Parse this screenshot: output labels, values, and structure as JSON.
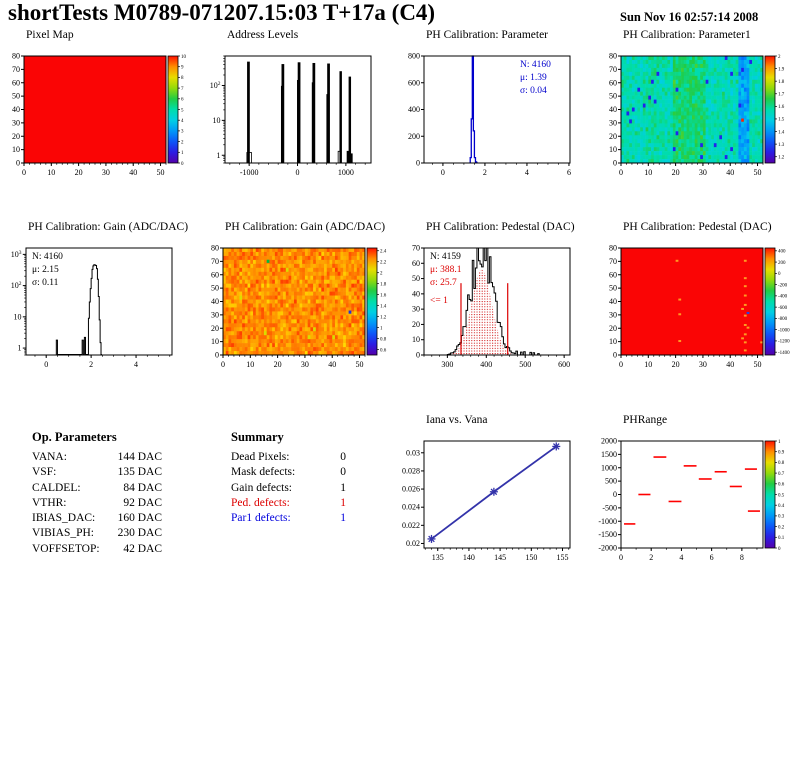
{
  "header": {
    "title": "shortTests M0789-071207.15:03 T+17a (C4)",
    "date": "Sun Nov 16 02:57:14 2008"
  },
  "op_parameters": {
    "title": "Op. Parameters",
    "rows": [
      {
        "label": "VANA:",
        "value": "144 DAC"
      },
      {
        "label": "VSF:",
        "value": "135 DAC"
      },
      {
        "label": "CALDEL:",
        "value": "84 DAC"
      },
      {
        "label": "VTHR:",
        "value": "92 DAC"
      },
      {
        "label": "IBIAS_DAC:",
        "value": "160 DAC"
      },
      {
        "label": "VIBIAS_PH:",
        "value": "230 DAC"
      },
      {
        "label": "VOFFSETOP:",
        "value": "42 DAC"
      }
    ]
  },
  "summary": {
    "title": "Summary",
    "rows": [
      {
        "label": "Dead Pixels:",
        "value": "0",
        "color": "#000000"
      },
      {
        "label": "Mask defects:",
        "value": "0",
        "color": "#000000"
      },
      {
        "label": "Gain defects:",
        "value": "1",
        "color": "#000000"
      },
      {
        "label": "Ped. defects:",
        "value": "1",
        "color": "#dd0000"
      },
      {
        "label": "Par1 defects:",
        "value": "1",
        "color": "#0000dd"
      }
    ]
  },
  "chart_data": [
    {
      "id": "pixel-map",
      "type": "heatmap-uniform",
      "layout": "heat",
      "title": "Pixel Map",
      "xlim": [
        0,
        52
      ],
      "xticks": [
        0,
        10,
        20,
        30,
        40,
        50
      ],
      "xminor": 2,
      "ylim": [
        0,
        80
      ],
      "yticks": [
        0,
        10,
        20,
        30,
        40,
        50,
        60,
        70,
        80
      ],
      "base_color": "#fa0505",
      "colorbar": {
        "min": 0,
        "max": 10,
        "ticks": [
          0,
          1,
          2,
          3,
          4,
          5,
          6,
          7,
          8,
          9,
          10
        ]
      }
    },
    {
      "id": "address-levels",
      "type": "spikes-log",
      "layout": "plain",
      "title": "Address Levels",
      "xlim": [
        -1500,
        1520
      ],
      "xticks": [
        -1000,
        0,
        1000
      ],
      "xminor": 200,
      "ylim": [
        0.6,
        700
      ],
      "ylog": true,
      "spikes": [
        [
          -1015,
          470,
          40
        ],
        [
          -1000,
          1.2,
          95
        ],
        [
          -320,
          95,
          28
        ],
        [
          -303,
          400,
          40
        ],
        [
          12,
          140,
          28
        ],
        [
          32,
          450,
          40
        ],
        [
          318,
          120,
          28
        ],
        [
          338,
          430,
          40
        ],
        [
          620,
          55,
          28
        ],
        [
          642,
          415,
          40
        ],
        [
          868,
          1.3,
          55
        ],
        [
          893,
          250,
          34
        ],
        [
          1048,
          1.3,
          45
        ],
        [
          1082,
          175,
          34
        ],
        [
          1112,
          1.1,
          40
        ]
      ]
    },
    {
      "id": "ph-parameter",
      "type": "step-hist",
      "layout": "plain",
      "title": "PH Calibration: Parameter",
      "color": "#0000cc",
      "lw": 1.3,
      "xlim": [
        -0.9,
        6.05
      ],
      "xticks": [
        0,
        2,
        4,
        6
      ],
      "xminor": 0.5,
      "ylim": [
        0,
        800
      ],
      "yticks": [
        0,
        200,
        400,
        600,
        800
      ],
      "bins": [
        [
          1.3,
          40
        ],
        [
          1.35,
          330
        ],
        [
          1.4,
          800
        ],
        [
          1.45,
          240
        ],
        [
          1.5,
          40
        ],
        [
          1.55,
          8
        ],
        [
          1.6,
          0
        ]
      ],
      "bin_w": 0.05,
      "stats_pos": "tr",
      "stats": [
        {
          "text": "N: 4160",
          "color": "#0000cc"
        },
        {
          "text": "μ: 1.39",
          "color": "#0000cc"
        },
        {
          "text": "σ: 0.04",
          "color": "#0000cc"
        }
      ]
    },
    {
      "id": "ph-parameter1",
      "type": "heatmap-noise",
      "layout": "heat",
      "title": "PH Calibration: Parameter1",
      "xlim": [
        0,
        52
      ],
      "xticks": [
        0,
        10,
        20,
        30,
        40,
        50
      ],
      "xminor": 2,
      "ylim": [
        0,
        80
      ],
      "yticks": [
        0,
        10,
        20,
        30,
        40,
        50,
        60,
        70,
        80
      ],
      "seed": 1234,
      "v_base": 0.48,
      "v_noise": 0.1,
      "col_bias": [
        {
          "c0": 19,
          "c1": 30,
          "v": 0.07
        },
        {
          "c0": 43,
          "c1": 46,
          "v": -0.16
        },
        {
          "c0": 8,
          "c1": 13,
          "v": 0.02
        }
      ],
      "outlier_p": 0.012,
      "outlier_v": 0.12,
      "dots": [
        {
          "x": 44,
          "y": 31,
          "c": "#ff2200"
        }
      ],
      "colorbar": {
        "min": 1.15,
        "max": 2,
        "ticks": [
          1.2,
          1.3,
          1.4,
          1.5,
          1.6,
          1.7,
          1.8,
          1.9,
          2
        ]
      }
    },
    {
      "id": "gain-hist",
      "type": "step-hist",
      "layout": "plain",
      "title": "PH Calibration: Gain (ADC/DAC)",
      "color": "#000000",
      "lw": 1,
      "xlim": [
        -0.9,
        5.6
      ],
      "xticks": [
        0,
        2,
        4
      ],
      "xminor": 0.5,
      "ylim": [
        0.6,
        1600
      ],
      "ylog": true,
      "bins": [
        [
          0.45,
          1.8
        ],
        [
          0.5,
          0
        ],
        [
          1.6,
          1.8
        ],
        [
          1.65,
          0
        ],
        [
          1.7,
          2.2
        ],
        [
          1.75,
          0
        ],
        [
          1.88,
          9
        ],
        [
          1.92,
          30
        ],
        [
          1.96,
          80
        ],
        [
          2.0,
          170
        ],
        [
          2.04,
          330
        ],
        [
          2.08,
          430
        ],
        [
          2.12,
          465
        ],
        [
          2.16,
          455
        ],
        [
          2.2,
          440
        ],
        [
          2.24,
          350
        ],
        [
          2.28,
          160
        ],
        [
          2.32,
          45
        ],
        [
          2.36,
          8
        ],
        [
          2.4,
          1.5
        ],
        [
          2.44,
          0
        ]
      ],
      "bin_w": 0.04,
      "stats_pos": "tl",
      "stats": [
        {
          "text": "N: 4160",
          "color": "#000000"
        },
        {
          "text": "μ: 2.15",
          "color": "#000000"
        },
        {
          "text": "σ: 0.11",
          "color": "#000000"
        }
      ]
    },
    {
      "id": "gain-map",
      "type": "heatmap-noise",
      "layout": "heat",
      "title": "PH Calibration: Gain (ADC/DAC)",
      "xlim": [
        0,
        52
      ],
      "xticks": [
        0,
        10,
        20,
        30,
        40,
        50
      ],
      "xminor": 2,
      "ylim": [
        0,
        80
      ],
      "yticks": [
        0,
        10,
        20,
        30,
        40,
        50,
        60,
        70,
        80
      ],
      "seed": 77,
      "v_base": 0.9,
      "v_noise": 0.07,
      "col_bias": [],
      "outlier_p": 0.004,
      "outlier_v": 0.78,
      "dots": [
        {
          "x": 16,
          "y": 69,
          "c": "#00bb44"
        },
        {
          "x": 46,
          "y": 31,
          "c": "#2233dd"
        }
      ],
      "colorbar": {
        "min": 0.5,
        "max": 2.45,
        "ticks": [
          0.6,
          0.8,
          1,
          1.2,
          1.4,
          1.6,
          1.8,
          2,
          2.2,
          2.4
        ]
      }
    },
    {
      "id": "pedestal-hist",
      "type": "pedestal-hist",
      "layout": "plain",
      "title": "PH Calibration: Pedestal (DAC)",
      "xlim": [
        240,
        615
      ],
      "xticks": [
        300,
        400,
        500,
        600
      ],
      "xminor": 20,
      "ylim": [
        0,
        70
      ],
      "yticks": [
        0,
        10,
        20,
        30,
        40,
        50,
        60,
        70
      ],
      "seed": 99,
      "hist": {
        "x0": 256,
        "x1": 600,
        "mu": 390,
        "sigma": 28,
        "peak": 69
      },
      "fill": {
        "x0": 300,
        "x1": 490,
        "mu": 388,
        "sigma": 26,
        "peak": 56
      },
      "vlines": [
        335,
        455
      ],
      "vline_top": 47,
      "stats_pos": "tl",
      "stats": [
        {
          "text": "N: 4159",
          "color": "#000000"
        },
        {
          "text": "μ: 388.1",
          "color": "#dd0000"
        },
        {
          "text": "σ: 25.7",
          "color": "#dd0000"
        },
        {
          "text": "<= 1",
          "color": "#dd0000",
          "dy": 18
        }
      ]
    },
    {
      "id": "pedestal-map",
      "type": "heatmap-uniform",
      "layout": "heat",
      "title": "PH Calibration: Pedestal (DAC)",
      "xlim": [
        0,
        52
      ],
      "xticks": [
        0,
        10,
        20,
        30,
        40,
        50
      ],
      "xminor": 2,
      "ylim": [
        0,
        80
      ],
      "yticks": [
        0,
        10,
        20,
        30,
        40,
        50,
        60,
        70,
        80
      ],
      "base_color": "#fa0505",
      "dot_color": "#ff9922",
      "dots": [
        {
          "x": 21,
          "y": 10
        },
        {
          "x": 21,
          "y": 30
        },
        {
          "x": 21,
          "y": 41
        },
        {
          "x": 20,
          "y": 70
        },
        {
          "x": 45,
          "y": 3
        },
        {
          "x": 45,
          "y": 9
        },
        {
          "x": 45,
          "y": 15
        },
        {
          "x": 45,
          "y": 22
        },
        {
          "x": 45,
          "y": 29
        },
        {
          "x": 45,
          "y": 37
        },
        {
          "x": 45,
          "y": 44
        },
        {
          "x": 45,
          "y": 51
        },
        {
          "x": 45,
          "y": 57
        },
        {
          "x": 44,
          "y": 12
        },
        {
          "x": 44,
          "y": 34
        },
        {
          "x": 46,
          "y": 20
        },
        {
          "x": 51,
          "y": 9
        },
        {
          "x": 45,
          "y": 70
        },
        {
          "x": 46,
          "y": 31,
          "c": "#2244ee"
        }
      ],
      "colorbar": {
        "min": -1450,
        "max": 450,
        "ticks": [
          400,
          200,
          0,
          -200,
          -400,
          -600,
          -800,
          -1000,
          -1200,
          -1400
        ]
      }
    },
    {
      "id": "iana-vana",
      "type": "line",
      "layout": "plain",
      "title": "Iana vs. Vana",
      "color": "#3333aa",
      "marker": "star",
      "x": [
        134,
        144,
        154
      ],
      "y": [
        0.0205,
        0.0257,
        0.0307
      ],
      "xlim": [
        132.8,
        156.2
      ],
      "xticks": [
        135,
        140,
        145,
        150,
        155
      ],
      "xminor": 1,
      "ylim": [
        0.0195,
        0.0313
      ],
      "yticks": [
        0.02,
        0.022,
        0.024,
        0.026,
        0.028,
        0.03
      ],
      "ytick_labels": [
        "0.02",
        "0.022",
        "0.024",
        "0.026",
        "0.028",
        "0.03"
      ]
    },
    {
      "id": "phrange",
      "type": "dash-scatter",
      "layout": "heat",
      "title": "PHRange",
      "color": "#ff0000",
      "dashes": [
        [
          0.2,
          0.95,
          -1100
        ],
        [
          1.15,
          1.95,
          0
        ],
        [
          2.15,
          3.0,
          1400
        ],
        [
          3.15,
          4.0,
          -260
        ],
        [
          4.15,
          5.0,
          1070
        ],
        [
          5.15,
          6.0,
          580
        ],
        [
          6.2,
          7.0,
          850
        ],
        [
          7.2,
          8.0,
          300
        ],
        [
          8.2,
          9.0,
          950
        ],
        [
          8.4,
          9.2,
          -620
        ]
      ],
      "xlim": [
        0,
        9.4
      ],
      "xticks": [
        0,
        2,
        4,
        6,
        8
      ],
      "xminor": 1,
      "ylim": [
        -2000,
        2000
      ],
      "yticks": [
        2000,
        1500,
        1000,
        500,
        0,
        -500,
        -1000,
        -1500,
        -2000
      ],
      "ytick_labels": [
        "2000",
        "1500",
        "1000",
        "500",
        "0",
        "-500",
        "-1000",
        "-1500",
        "-2000"
      ],
      "colorbar": {
        "min": 0,
        "max": 1,
        "ticks": [
          0,
          0.1,
          0.2,
          0.3,
          0.4,
          0.5,
          0.6,
          0.7,
          0.8,
          0.9,
          1
        ]
      }
    }
  ]
}
